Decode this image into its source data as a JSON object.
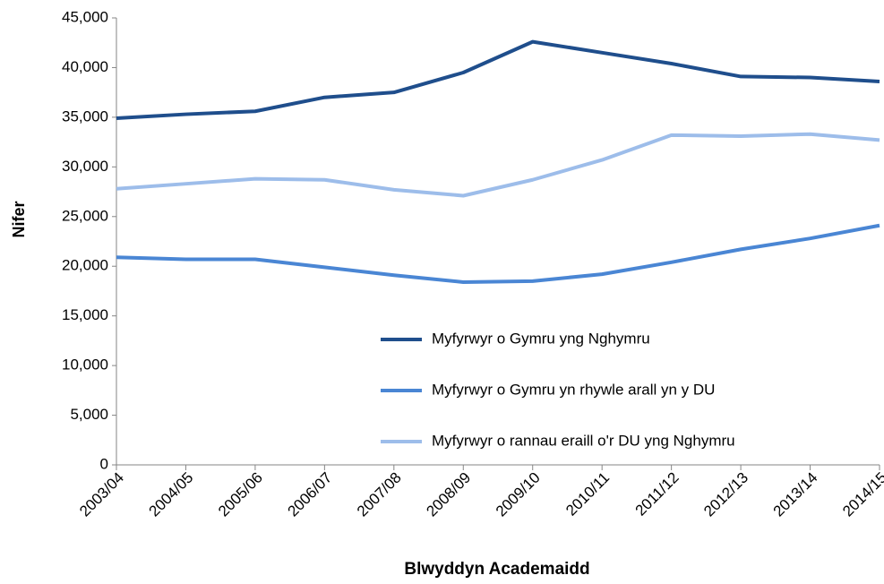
{
  "chart_data": {
    "type": "line",
    "x_label": "Blwyddyn Academaidd",
    "y_label": "Nifer",
    "categories": [
      "2003/04",
      "2004/05",
      "2005/06",
      "2006/07",
      "2007/08",
      "2008/09",
      "2009/10",
      "2010/11",
      "2011/12",
      "2012/13",
      "2013/14",
      "2014/15"
    ],
    "series": [
      {
        "name": "Myfyrwyr o Gymru yng Nghymru",
        "color": "#1F4E8C",
        "values": [
          34900,
          35300,
          35600,
          37000,
          37500,
          39500,
          42600,
          41500,
          40400,
          39100,
          39000,
          38600
        ]
      },
      {
        "name": "Myfyrwyr o Gymru yn rhywle arall yn y DU",
        "color": "#4A86D4",
        "values": [
          20900,
          20700,
          20700,
          19900,
          19100,
          18400,
          18500,
          19200,
          20400,
          21700,
          22800,
          24100
        ]
      },
      {
        "name": "Myfyrwyr o rannau eraill o'r DU yng Nghymru",
        "color": "#9DBDEA",
        "values": [
          27800,
          28300,
          28800,
          28700,
          27700,
          27100,
          28700,
          30700,
          33200,
          33100,
          33300,
          32700
        ]
      }
    ],
    "ylim": [
      0,
      45000
    ],
    "yticks": [
      0,
      {
        "value": 5000,
        "label": "5,000"
      },
      {
        "value": 10000,
        "label": "10,000"
      },
      {
        "value": 15000,
        "label": "15,000"
      },
      {
        "value": 20000,
        "label": "20,000"
      },
      {
        "value": 25000,
        "label": "25,000"
      },
      {
        "value": 30000,
        "label": "30,000"
      },
      {
        "value": 35000,
        "label": "35,000"
      },
      {
        "value": 40000,
        "label": "40,000"
      },
      {
        "value": 45000,
        "label": "45,000"
      }
    ],
    "grid": false,
    "legend": "lower right"
  }
}
